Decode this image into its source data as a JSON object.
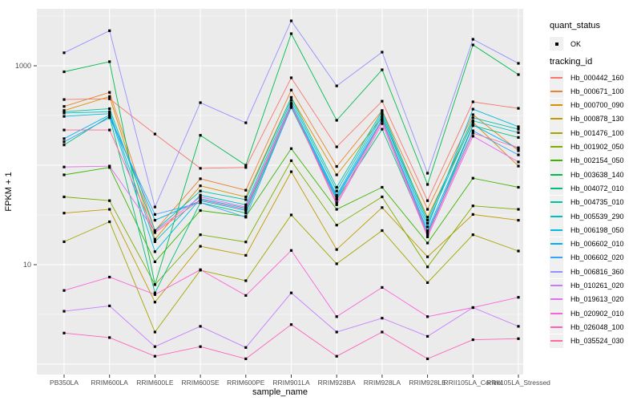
{
  "figure": {
    "legend": {
      "quant_status_title": "quant_status",
      "ok_label": "OK",
      "ok_marker": "black-point-icon",
      "tracking_id_title": "tracking_id"
    },
    "colors": {
      "panel_bg": "#EBEBEB",
      "grid": "#FFFFFF",
      "axis_text": "#4D4D4D",
      "point": "#000000",
      "legend_key_bg": "#F0F0F0"
    }
  },
  "chart_data": {
    "type": "line",
    "title": "",
    "xlabel": "sample_name",
    "ylabel": "FPKM + 1",
    "y_scale": "log10",
    "y_tick_labels": [
      "1000",
      "10"
    ],
    "y_ticks": [
      1000,
      10
    ],
    "ylim": [
      1,
      3500
    ],
    "grid": true,
    "legend_position": "right",
    "quant_status": "OK",
    "point_marker": "small-black-square",
    "categories": [
      "PB350LA",
      "RRIM600LA",
      "RRIM600LE",
      "RRIM600SE",
      "RRIM600PE",
      "RRIM901LA",
      "RRIM928BA",
      "RRIM928LA",
      "RRIM928LE",
      "RRII105LA_Control",
      "RRII105LA_Stressed"
    ],
    "series": [
      {
        "name": "Hb_000442_160",
        "color": "#F8766D",
        "values": [
          458,
          465,
          206,
          93,
          95,
          757,
          153,
          440,
          44,
          434,
          373
        ]
      },
      {
        "name": "Hb_000671_100",
        "color": "#EA8331",
        "values": [
          390,
          540,
          22,
          73,
          56,
          570,
          97,
          355,
          36,
          322,
          140
        ]
      },
      {
        "name": "Hb_000700_090",
        "color": "#D89000",
        "values": [
          355,
          490,
          18,
          62,
          48,
          480,
          80,
          300,
          30,
          270,
          98
        ]
      },
      {
        "name": "Hb_000878_130",
        "color": "#C09B00",
        "values": [
          33,
          36,
          4.2,
          15.3,
          12.4,
          86,
          14.2,
          37.5,
          12,
          32,
          28
        ]
      },
      {
        "name": "Hb_001476_100",
        "color": "#A3A500",
        "values": [
          17,
          27,
          2.1,
          8.8,
          6.9,
          31.6,
          10.2,
          22,
          6.6,
          20,
          13.7
        ]
      },
      {
        "name": "Hb_001902_050",
        "color": "#7CAE00",
        "values": [
          48,
          44,
          6.3,
          20,
          16.9,
          111,
          25,
          48,
          9.5,
          39,
          36
        ]
      },
      {
        "name": "Hb_002154_050",
        "color": "#39B600",
        "values": [
          80,
          95,
          10.7,
          35,
          30.6,
          147,
          36,
          60,
          16.5,
          74,
          60
        ]
      },
      {
        "name": "Hb_003638_140",
        "color": "#00BB4E",
        "values": [
          870,
          1100,
          6.3,
          200,
          100,
          2100,
          283,
          911,
          64,
          1620,
          815
        ]
      },
      {
        "name": "Hb_004072_010",
        "color": "#00BF7D",
        "values": [
          160,
          310,
          5.2,
          42,
          33,
          380,
          45,
          230,
          20,
          250,
          190
        ]
      },
      {
        "name": "Hb_004735_010",
        "color": "#00C1A3",
        "values": [
          345,
          370,
          22,
          55,
          45,
          480,
          60,
          350,
          28,
          300,
          230
        ]
      },
      {
        "name": "Hb_005539_290",
        "color": "#00BFC4",
        "values": [
          335,
          345,
          17,
          50,
          40,
          450,
          55,
          330,
          26,
          280,
          213
        ]
      },
      {
        "name": "Hb_006198_050",
        "color": "#00BAE0",
        "values": [
          310,
          330,
          13.5,
          46,
          37,
          420,
          50,
          312,
          24,
          366,
          244
        ]
      },
      {
        "name": "Hb_006602_010",
        "color": "#00B0F6",
        "values": [
          185,
          320,
          28,
          44,
          35,
          400,
          48,
          290,
          22,
          254,
          147
        ]
      },
      {
        "name": "Hb_006602_020",
        "color": "#35A2FF",
        "values": [
          172,
          300,
          32,
          42,
          30,
          385,
          46,
          280,
          21,
          222,
          127
        ]
      },
      {
        "name": "Hb_006816_360",
        "color": "#9590FF",
        "values": [
          1350,
          2250,
          38,
          426,
          267,
          2830,
          628,
          1371,
          83,
          1845,
          1057
        ]
      },
      {
        "name": "Hb_010261_020",
        "color": "#C77CFF",
        "values": [
          3.4,
          3.85,
          1.5,
          2.4,
          1.47,
          5.2,
          2.1,
          2.9,
          1.9,
          3.7,
          2.4
        ]
      },
      {
        "name": "Hb_019613_020",
        "color": "#E76BF3",
        "values": [
          96,
          98,
          21.7,
          48,
          38,
          408,
          40,
          262,
          19,
          196,
          108
        ]
      },
      {
        "name": "Hb_020902_010",
        "color": "#FA62DB",
        "values": [
          5.5,
          7.5,
          5.0,
          8.9,
          4.9,
          13.9,
          3.0,
          5.9,
          3.0,
          3.7,
          4.7
        ]
      },
      {
        "name": "Hb_026048_100",
        "color": "#FF62BC",
        "values": [
          2.05,
          1.85,
          1.2,
          1.5,
          1.13,
          2.5,
          1.2,
          2.1,
          1.13,
          1.76,
          1.8
        ]
      },
      {
        "name": "Hb_035524_030",
        "color": "#FF6A98",
        "values": [
          226,
          226,
          21,
          45,
          36,
          400,
          42,
          280,
          20,
          210,
          150
        ]
      }
    ]
  }
}
